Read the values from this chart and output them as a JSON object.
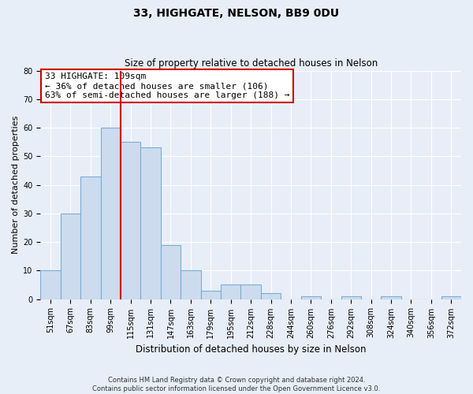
{
  "title": "33, HIGHGATE, NELSON, BB9 0DU",
  "subtitle": "Size of property relative to detached houses in Nelson",
  "xlabel": "Distribution of detached houses by size in Nelson",
  "ylabel": "Number of detached properties",
  "bin_labels": [
    "51sqm",
    "67sqm",
    "83sqm",
    "99sqm",
    "115sqm",
    "131sqm",
    "147sqm",
    "163sqm",
    "179sqm",
    "195sqm",
    "212sqm",
    "228sqm",
    "244sqm",
    "260sqm",
    "276sqm",
    "292sqm",
    "308sqm",
    "324sqm",
    "340sqm",
    "356sqm",
    "372sqm"
  ],
  "bar_heights": [
    10,
    30,
    43,
    60,
    55,
    53,
    19,
    10,
    3,
    5,
    5,
    2,
    0,
    1,
    0,
    1,
    0,
    1,
    0,
    0,
    1
  ],
  "n_bins": 21,
  "bar_color": "#ccdcee",
  "bar_edge_color": "#7aadd4",
  "red_line_x": 4,
  "ylim": [
    0,
    80
  ],
  "yticks": [
    0,
    10,
    20,
    30,
    40,
    50,
    60,
    70,
    80
  ],
  "annotation_text": "33 HIGHGATE: 109sqm\n← 36% of detached houses are smaller (106)\n63% of semi-detached houses are larger (188) →",
  "annotation_box_color": "#ffffff",
  "annotation_box_edge": "#cc0000",
  "footer_line1": "Contains HM Land Registry data © Crown copyright and database right 2024.",
  "footer_line2": "Contains public sector information licensed under the Open Government Licence v3.0.",
  "background_color": "#e8eef7",
  "grid_color": "#ffffff",
  "title_fontsize": 10,
  "subtitle_fontsize": 8.5,
  "ylabel_fontsize": 8,
  "xlabel_fontsize": 8.5,
  "tick_fontsize": 7,
  "footer_fontsize": 6,
  "annot_fontsize": 8
}
